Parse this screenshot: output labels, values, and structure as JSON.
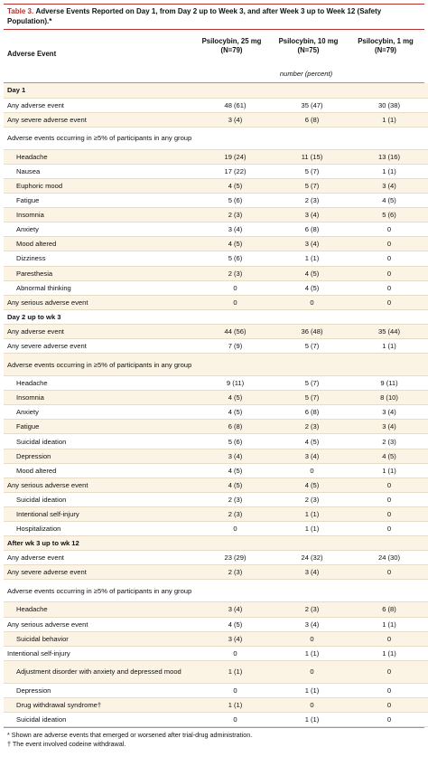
{
  "title": {
    "number": "Table 3.",
    "text": "Adverse Events Reported on Day 1, from Day 2 up to Week 3, and after Week 3 up to Week 12 (Safety Population).*"
  },
  "columns": {
    "label": "Adverse Event",
    "groups": [
      {
        "name": "Psilocybin, 25 mg",
        "n": "(N=79)"
      },
      {
        "name": "Psilocybin, 10 mg",
        "n": "(N=75)"
      },
      {
        "name": "Psilocybin, 1 mg",
        "n": "(N=79)"
      }
    ],
    "unit_note": "number (percent)"
  },
  "rows": [
    {
      "type": "section",
      "label": "Day 1"
    },
    {
      "label": "Any adverse event",
      "v": [
        "48 (61)",
        "35 (47)",
        "30 (38)"
      ]
    },
    {
      "label": "Any severe adverse event",
      "v": [
        "3 (4)",
        "6 (8)",
        "1 (1)"
      ]
    },
    {
      "label": "Adverse events occurring in ≥5% of participants in any group",
      "v": [
        "",
        "",
        ""
      ],
      "tall": true
    },
    {
      "label": "Headache",
      "ind": true,
      "v": [
        "19 (24)",
        "11 (15)",
        "13 (16)"
      ]
    },
    {
      "label": "Nausea",
      "ind": true,
      "v": [
        "17 (22)",
        "5 (7)",
        "1 (1)"
      ]
    },
    {
      "label": "Euphoric mood",
      "ind": true,
      "v": [
        "4 (5)",
        "5 (7)",
        "3 (4)"
      ]
    },
    {
      "label": "Fatigue",
      "ind": true,
      "v": [
        "5 (6)",
        "2 (3)",
        "4 (5)"
      ]
    },
    {
      "label": "Insomnia",
      "ind": true,
      "v": [
        "2 (3)",
        "3 (4)",
        "5 (6)"
      ]
    },
    {
      "label": "Anxiety",
      "ind": true,
      "v": [
        "3 (4)",
        "6 (8)",
        "0"
      ]
    },
    {
      "label": "Mood altered",
      "ind": true,
      "v": [
        "4 (5)",
        "3 (4)",
        "0"
      ]
    },
    {
      "label": "Dizziness",
      "ind": true,
      "v": [
        "5 (6)",
        "1 (1)",
        "0"
      ]
    },
    {
      "label": "Paresthesia",
      "ind": true,
      "v": [
        "2 (3)",
        "4 (5)",
        "0"
      ]
    },
    {
      "label": "Abnormal thinking",
      "ind": true,
      "v": [
        "0",
        "4 (5)",
        "0"
      ]
    },
    {
      "label": "Any serious adverse event",
      "v": [
        "0",
        "0",
        "0"
      ]
    },
    {
      "type": "section",
      "label": "Day 2 up to wk 3"
    },
    {
      "label": "Any adverse event",
      "v": [
        "44 (56)",
        "36 (48)",
        "35 (44)"
      ]
    },
    {
      "label": "Any severe adverse event",
      "v": [
        "7 (9)",
        "5 (7)",
        "1 (1)"
      ]
    },
    {
      "label": "Adverse events occurring in ≥5% of participants in any group",
      "v": [
        "",
        "",
        ""
      ],
      "tall": true
    },
    {
      "label": "Headache",
      "ind": true,
      "v": [
        "9 (11)",
        "5 (7)",
        "9 (11)"
      ]
    },
    {
      "label": "Insomnia",
      "ind": true,
      "v": [
        "4 (5)",
        "5 (7)",
        "8 (10)"
      ]
    },
    {
      "label": "Anxiety",
      "ind": true,
      "v": [
        "4 (5)",
        "6 (8)",
        "3 (4)"
      ]
    },
    {
      "label": "Fatigue",
      "ind": true,
      "v": [
        "6 (8)",
        "2 (3)",
        "3 (4)"
      ]
    },
    {
      "label": "Suicidal ideation",
      "ind": true,
      "v": [
        "5 (6)",
        "4 (5)",
        "2 (3)"
      ]
    },
    {
      "label": "Depression",
      "ind": true,
      "v": [
        "3 (4)",
        "3 (4)",
        "4 (5)"
      ]
    },
    {
      "label": "Mood altered",
      "ind": true,
      "v": [
        "4 (5)",
        "0",
        "1 (1)"
      ]
    },
    {
      "label": "Any serious adverse event",
      "v": [
        "4 (5)",
        "4 (5)",
        "0"
      ]
    },
    {
      "label": "Suicidal ideation",
      "ind": true,
      "v": [
        "2 (3)",
        "2 (3)",
        "0"
      ]
    },
    {
      "label": "Intentional self-injury",
      "ind": true,
      "v": [
        "2 (3)",
        "1 (1)",
        "0"
      ]
    },
    {
      "label": "Hospitalization",
      "ind": true,
      "v": [
        "0",
        "1 (1)",
        "0"
      ]
    },
    {
      "type": "section",
      "label": "After wk 3 up to wk 12"
    },
    {
      "label": "Any adverse event",
      "v": [
        "23 (29)",
        "24 (32)",
        "24 (30)"
      ]
    },
    {
      "label": "Any severe adverse event",
      "v": [
        "2 (3)",
        "3 (4)",
        "0"
      ]
    },
    {
      "label": "Adverse events occurring in ≥5% of participants in any group",
      "v": [
        "",
        "",
        ""
      ],
      "tall": true
    },
    {
      "label": "Headache",
      "ind": true,
      "v": [
        "3 (4)",
        "2 (3)",
        "6 (8)"
      ]
    },
    {
      "label": "Any serious adverse event",
      "v": [
        "4 (5)",
        "3 (4)",
        "1 (1)"
      ]
    },
    {
      "label": "Suicidal behavior",
      "ind": true,
      "v": [
        "3 (4)",
        "0",
        "0"
      ]
    },
    {
      "label": "Intentional self-injury",
      "v": [
        "0",
        "1 (1)",
        "1 (1)"
      ]
    },
    {
      "label": "Adjustment disorder with anxiety and depressed mood",
      "ind": true,
      "v": [
        "1 (1)",
        "0",
        "0"
      ],
      "tall": true
    },
    {
      "label": "Depression",
      "ind": true,
      "v": [
        "0",
        "1 (1)",
        "0"
      ]
    },
    {
      "label": "Drug withdrawal syndrome†",
      "ind": true,
      "v": [
        "1 (1)",
        "0",
        "0"
      ]
    },
    {
      "label": "Suicidal ideation",
      "ind": true,
      "v": [
        "0",
        "1 (1)",
        "0"
      ]
    }
  ],
  "footnotes": [
    "* Shown are adverse events that emerged or worsened after trial-drug administration.",
    "† The event involved codeine withdrawal."
  ]
}
